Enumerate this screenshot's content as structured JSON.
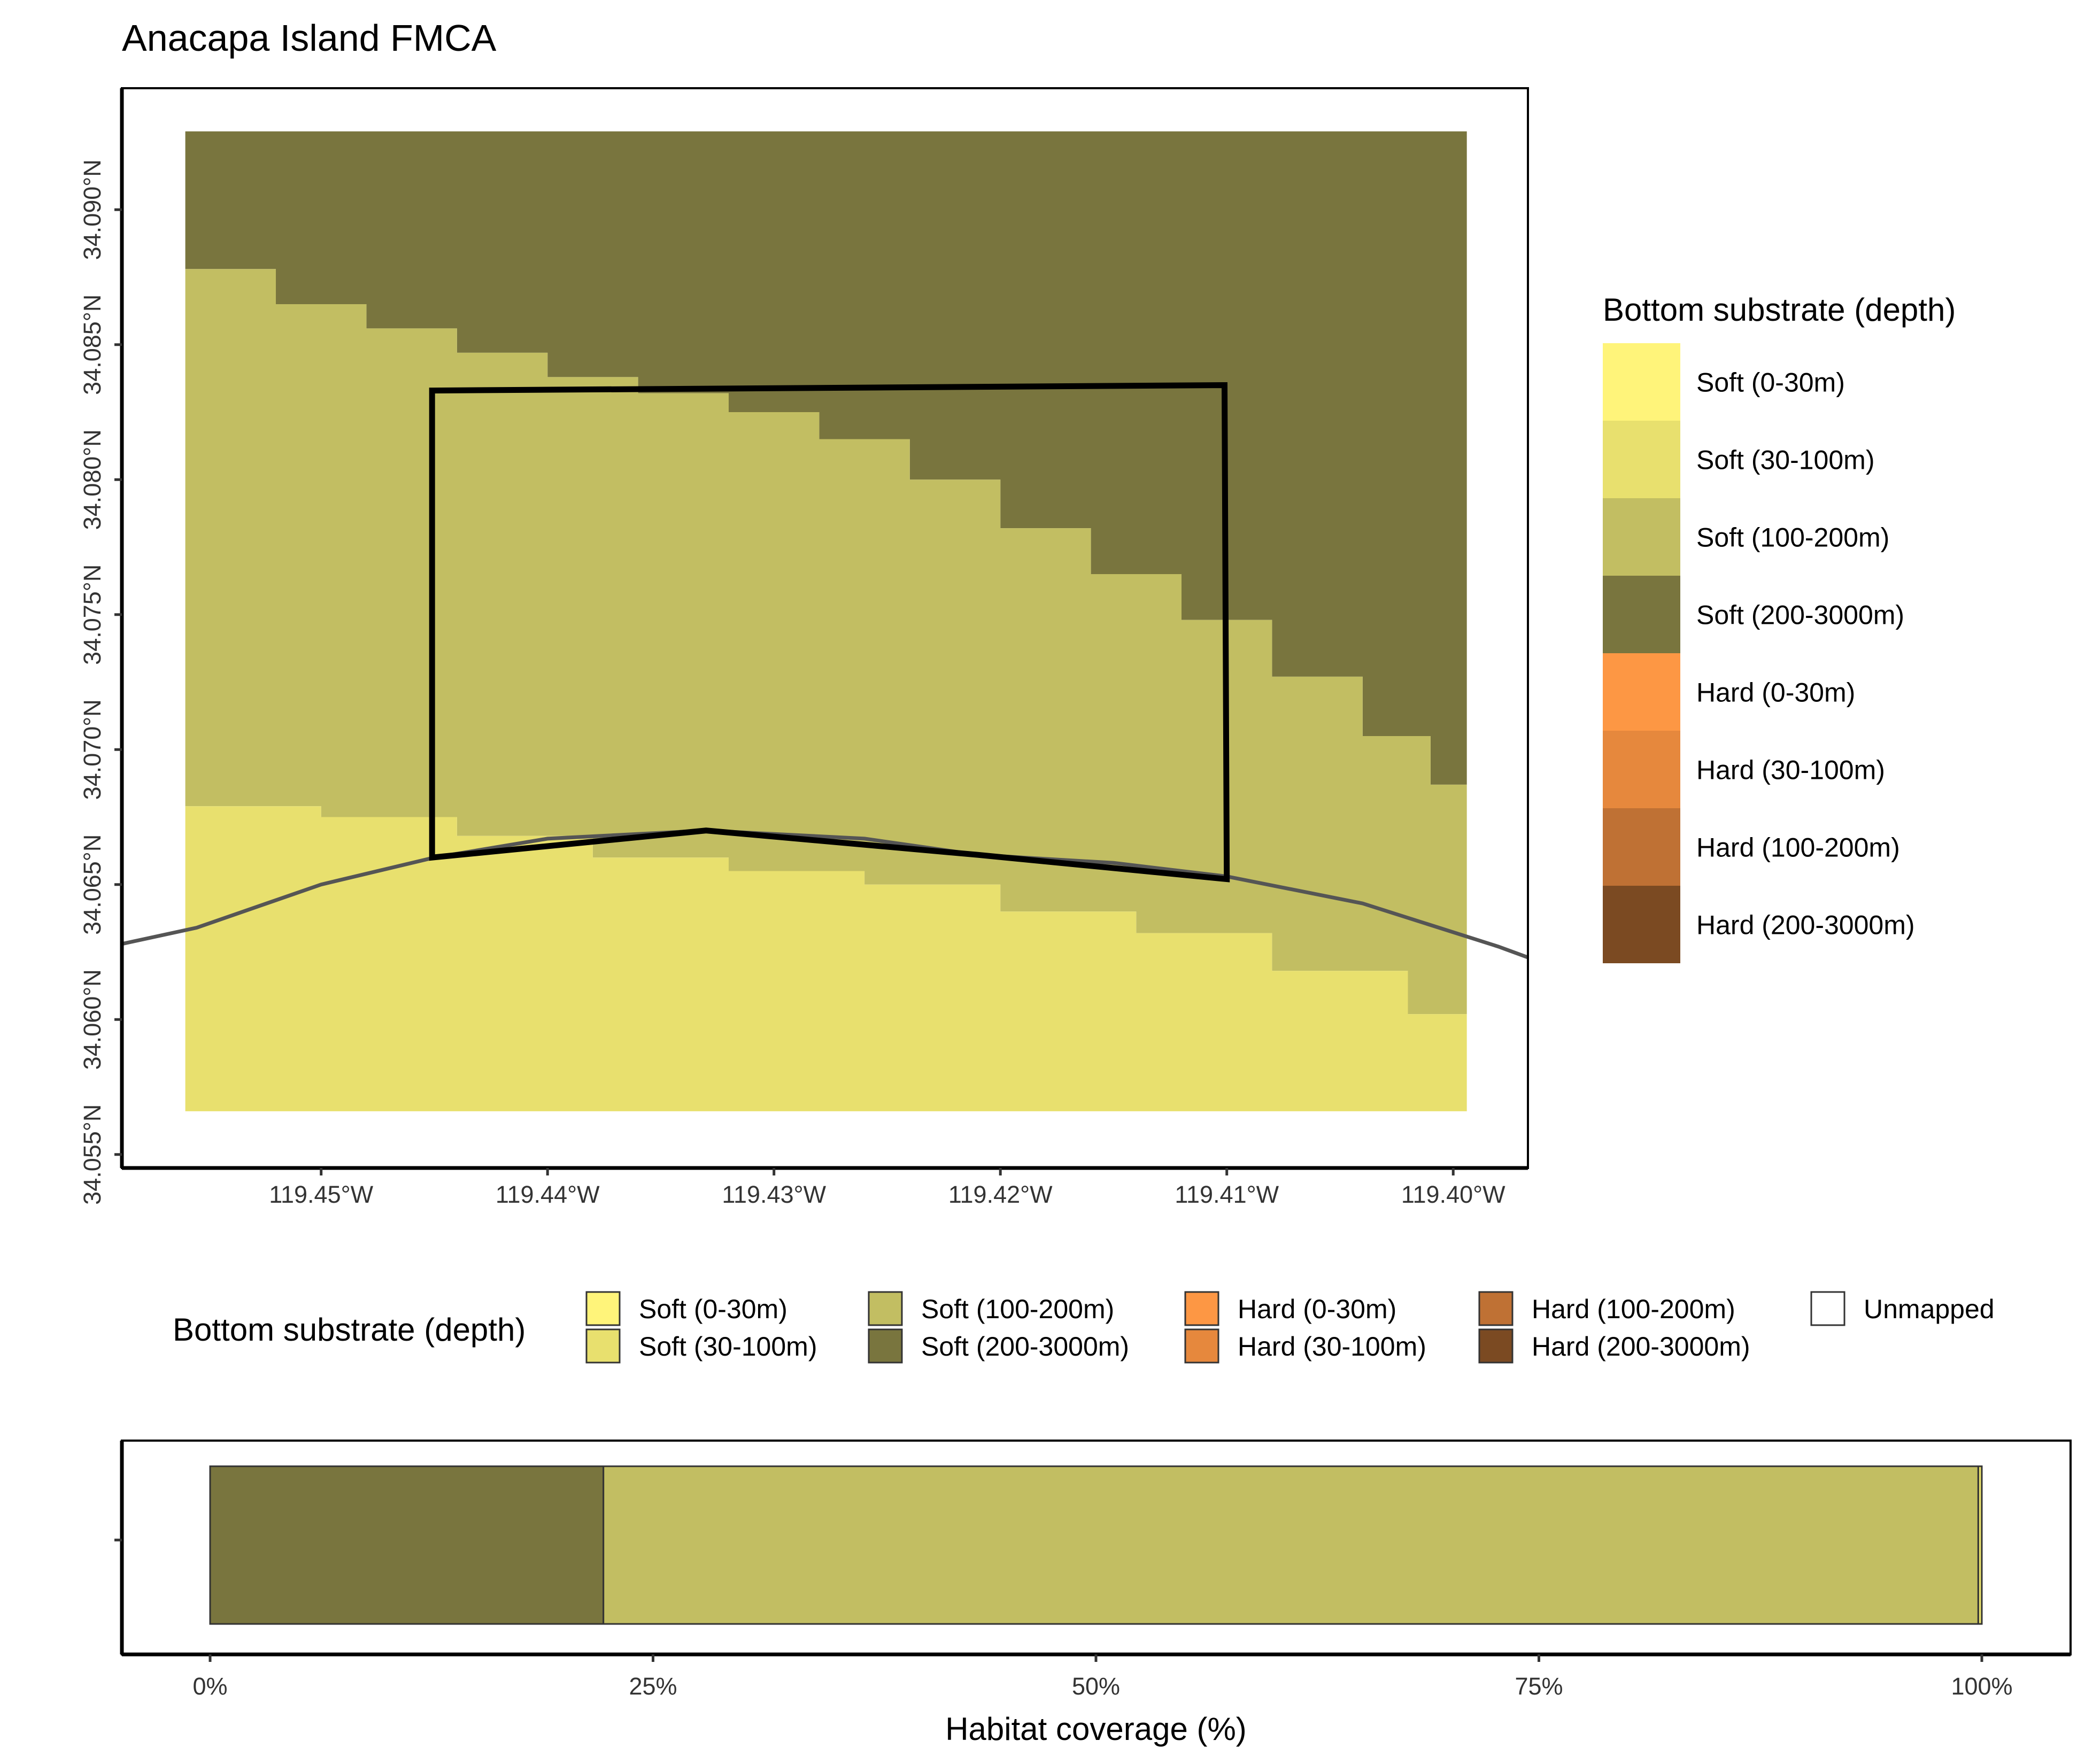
{
  "title": "Anacapa Island FMCA",
  "legend": {
    "title": "Bottom substrate (depth)",
    "items": [
      {
        "label": "Soft (0-30m)",
        "color": "#FFF47A"
      },
      {
        "label": "Soft (30-100m)",
        "color": "#E8E06E"
      },
      {
        "label": "Soft (100-200m)",
        "color": "#C2BE62"
      },
      {
        "label": "Soft (200-3000m)",
        "color": "#79753E"
      },
      {
        "label": "Hard (0-30m)",
        "color": "#FD9744"
      },
      {
        "label": "Hard (30-100m)",
        "color": "#E6883D"
      },
      {
        "label": "Hard (100-200m)",
        "color": "#BF7134"
      },
      {
        "label": "Hard (200-3000m)",
        "color": "#7B4A22"
      }
    ],
    "unmapped": {
      "label": "Unmapped",
      "color": "#FFFFFF"
    }
  },
  "chart_data": [
    {
      "type": "heatmap",
      "title": "Anacapa Island FMCA",
      "xlabel": "",
      "ylabel": "",
      "x_ticks": [
        "119.45°W",
        "119.44°W",
        "119.43°W",
        "119.42°W",
        "119.41°W",
        "119.40°W"
      ],
      "y_ticks": [
        "34.055°N",
        "34.060°N",
        "34.065°N",
        "34.070°N",
        "34.075°N",
        "34.080°N",
        "34.085°N",
        "34.090°N"
      ],
      "xlim": [
        -119.4588,
        -119.3967
      ],
      "ylim": [
        34.0545,
        34.0945
      ],
      "raster_extent": {
        "lon": [
          -119.456,
          -119.3994
        ],
        "lat": [
          34.0566,
          34.0929
        ]
      },
      "substrate_boundaries": [
        {
          "between": [
            "Soft (30-100m)",
            "Soft (100-200m)"
          ],
          "lon": [
            -119.456,
            -119.45,
            -119.444,
            -119.438,
            -119.432,
            -119.426,
            -119.42,
            -119.414,
            -119.408,
            -119.402,
            -119.3994
          ],
          "lat": [
            34.0679,
            34.0675,
            34.0668,
            34.066,
            34.0655,
            34.065,
            34.064,
            34.0632,
            34.0618,
            34.0602,
            34.0602
          ]
        },
        {
          "between": [
            "Soft (100-200m)",
            "Soft (200-3000m)"
          ],
          "lon": [
            -119.456,
            -119.452,
            -119.448,
            -119.444,
            -119.44,
            -119.436,
            -119.432,
            -119.428,
            -119.424,
            -119.42,
            -119.416,
            -119.412,
            -119.408,
            -119.404,
            -119.401,
            -119.3994
          ],
          "lat": [
            34.0878,
            34.0865,
            34.0856,
            34.0847,
            34.0838,
            34.0832,
            34.0825,
            34.0815,
            34.08,
            34.0782,
            34.0765,
            34.0748,
            34.0727,
            34.0705,
            34.0687,
            34.0675
          ]
        }
      ],
      "fmca_boundary": {
        "lon": [
          -119.4451,
          -119.4101,
          -119.41,
          -119.421,
          -119.433,
          -119.4451,
          -119.4451
        ],
        "lat": [
          34.0833,
          34.0835,
          34.0652,
          34.0661,
          34.067,
          34.066,
          34.0833
        ]
      },
      "coastline": {
        "lon": [
          -119.4588,
          -119.4555,
          -119.45,
          -119.445,
          -119.44,
          -119.433,
          -119.426,
          -119.421,
          -119.415,
          -119.41,
          -119.404,
          -119.398,
          -119.3967
        ],
        "lat": [
          34.0628,
          34.0634,
          34.065,
          34.066,
          34.0667,
          34.067,
          34.0667,
          34.0661,
          34.0658,
          34.0653,
          34.0643,
          34.0627,
          34.0623
        ]
      }
    },
    {
      "type": "bar",
      "orientation": "horizontal",
      "stacked": true,
      "xlabel": "Habitat coverage (%)",
      "ylabel": "",
      "xlim": [
        0,
        100
      ],
      "x_ticks": [
        "0%",
        "25%",
        "50%",
        "75%",
        "100%"
      ],
      "series": [
        {
          "name": "Soft (200-3000m)",
          "values": [
            22.2
          ]
        },
        {
          "name": "Soft (100-200m)",
          "values": [
            77.6
          ]
        },
        {
          "name": "Soft (30-100m)",
          "values": [
            0.2
          ]
        }
      ]
    }
  ]
}
